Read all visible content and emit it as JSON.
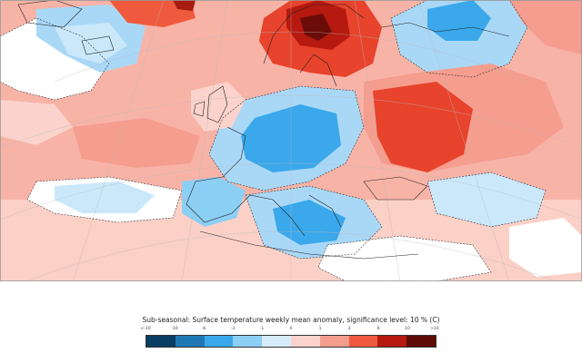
{
  "caption": "Sub-seasonal: Surface temperature weekly mean anomaly, significance level: 10 % (C)",
  "legend": {
    "labels": [
      "<-10",
      "-10",
      "-6",
      "-3",
      "-1",
      "0",
      "1",
      "3",
      "6",
      "10",
      ">10"
    ],
    "colors": [
      "#0a3d62",
      "#1f78b4",
      "#3aa8ea",
      "#8ccff5",
      "#d6ecfb",
      "#ffffff",
      "#fbd3cc",
      "#f59d8f",
      "#ef5a3e",
      "#b5190f",
      "#5e0a06"
    ]
  },
  "map": {
    "ocean_color": "#f7a89d",
    "land_color": "#f7b7ab",
    "colors_used": {
      "warm_strong": "#e8432c",
      "warm_very_strong": "#a61c10",
      "cold_light": "#a9d8f7",
      "cold_medium": "#3aa8ea",
      "neutral": "#ffffff"
    }
  }
}
